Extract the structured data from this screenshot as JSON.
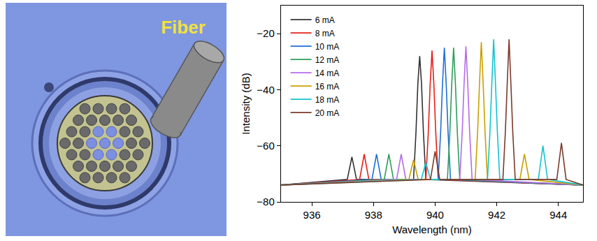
{
  "photo": {
    "label": "Fiber"
  },
  "chart_data": {
    "type": "line",
    "xlabel": "Wavelength (nm)",
    "ylabel": "Intensity (dB)",
    "xlim": [
      935,
      944.8
    ],
    "xticks": [
      936,
      938,
      940,
      942,
      944
    ],
    "ylim": [
      -80,
      -10
    ],
    "yticks": [
      -80,
      -60,
      -40,
      -20
    ],
    "grid": false,
    "legend": "upper left",
    "series": [
      {
        "name": "6 mA",
        "color": "#333333",
        "x": [
          935.0,
          937.15,
          937.3,
          937.45,
          939.3,
          939.38,
          939.44,
          939.5,
          939.56,
          939.62,
          939.7,
          944.8
        ],
        "values": [
          -74,
          -72,
          -64,
          -72,
          -72,
          -55,
          -38,
          -28,
          -38,
          -55,
          -72,
          -74
        ]
      },
      {
        "name": "8 mA",
        "color": "#e8201a",
        "x": [
          935.0,
          937.55,
          937.7,
          937.85,
          939.7,
          939.78,
          939.84,
          939.9,
          939.96,
          940.02,
          940.1,
          944.8
        ],
        "values": [
          -74,
          -72,
          -63,
          -72,
          -72,
          -55,
          -38,
          -26,
          -38,
          -55,
          -72,
          -74
        ]
      },
      {
        "name": "10 mA",
        "color": "#1f6fd6",
        "x": [
          935.0,
          937.95,
          938.1,
          938.25,
          940.1,
          940.18,
          940.24,
          940.3,
          940.36,
          940.42,
          940.5,
          944.8
        ],
        "values": [
          -74,
          -72,
          -63,
          -72,
          -72,
          -55,
          -38,
          -25,
          -38,
          -55,
          -72,
          -74
        ]
      },
      {
        "name": "12 mA",
        "color": "#2e9e5a",
        "x": [
          935.0,
          938.35,
          938.5,
          938.65,
          940.4,
          940.48,
          940.54,
          940.6,
          940.66,
          940.72,
          940.8,
          944.8
        ],
        "values": [
          -74,
          -72,
          -63,
          -72,
          -72,
          -55,
          -38,
          -25,
          -38,
          -55,
          -72,
          -74
        ]
      },
      {
        "name": "14 mA",
        "color": "#b46be8",
        "x": [
          935.0,
          938.75,
          938.9,
          939.05,
          940.8,
          940.88,
          940.94,
          941.0,
          941.06,
          941.12,
          941.2,
          944.8
        ],
        "values": [
          -74,
          -72,
          -63,
          -72,
          -72,
          -55,
          -38,
          -24.5,
          -38,
          -55,
          -72,
          -74
        ]
      },
      {
        "name": "16 mA",
        "color": "#c8a000",
        "x": [
          935.0,
          939.15,
          939.3,
          939.45,
          941.3,
          941.38,
          941.44,
          941.5,
          941.56,
          941.62,
          941.7,
          942.75,
          942.9,
          943.05,
          944.8
        ],
        "values": [
          -74,
          -72,
          -65,
          -72,
          -72,
          -55,
          -38,
          -23,
          -38,
          -55,
          -72,
          -72,
          -63,
          -72,
          -74
        ]
      },
      {
        "name": "18 mA",
        "color": "#13c4cf",
        "x": [
          935.0,
          939.55,
          939.7,
          939.85,
          941.7,
          941.78,
          941.84,
          941.9,
          941.96,
          942.02,
          942.1,
          943.35,
          943.5,
          943.65,
          944.8
        ],
        "values": [
          -74,
          -72,
          -66,
          -72,
          -72,
          -55,
          -38,
          -22,
          -38,
          -55,
          -72,
          -72,
          -60,
          -72,
          -74
        ]
      },
      {
        "name": "20 mA",
        "color": "#7a3b2a",
        "x": [
          935.0,
          939.85,
          940.0,
          940.15,
          942.2,
          942.28,
          942.34,
          942.4,
          942.46,
          942.52,
          942.6,
          943.95,
          944.1,
          944.25,
          944.8
        ],
        "values": [
          -74,
          -72,
          -62,
          -72,
          -72,
          -55,
          -38,
          -22,
          -38,
          -55,
          -72,
          -72,
          -59,
          -72,
          -74
        ]
      }
    ]
  }
}
